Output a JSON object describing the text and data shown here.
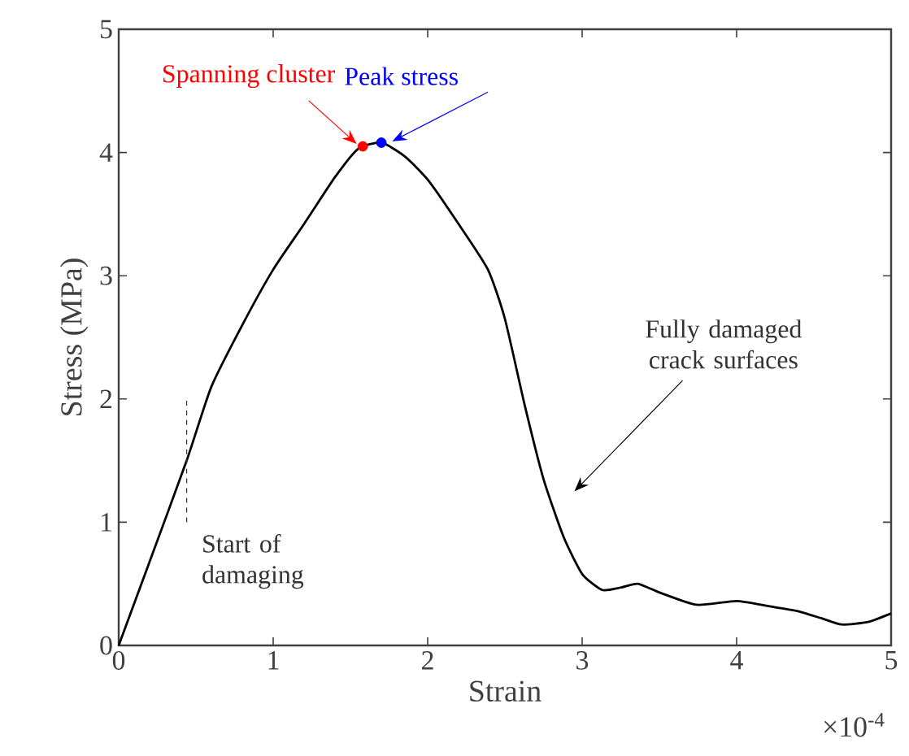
{
  "chart_data": {
    "type": "line",
    "xlabel": "Strain",
    "ylabel": "Stress (MPa)",
    "xlim": [
      0,
      5
    ],
    "ylim": [
      0,
      5
    ],
    "xticks": [
      0,
      1,
      2,
      3,
      4,
      5
    ],
    "yticks": [
      0,
      1,
      2,
      3,
      4,
      5
    ],
    "grid": false,
    "line_style": "solid",
    "series": [
      {
        "color": "#000000",
        "x": [
          0,
          0.2,
          0.44,
          0.6,
          0.8,
          1.0,
          1.2,
          1.4,
          1.55,
          1.7,
          1.85,
          2.0,
          2.2,
          2.39,
          2.5,
          2.63,
          2.75,
          2.88,
          3.0,
          3.13,
          3.25,
          3.36,
          3.5,
          3.74,
          4.0,
          4.2,
          4.39,
          4.55,
          4.68,
          4.85,
          5.0
        ],
        "values": [
          0,
          0.68,
          1.5,
          2.1,
          2.6,
          3.05,
          3.42,
          3.8,
          4.03,
          4.08,
          3.97,
          3.78,
          3.42,
          3.05,
          2.65,
          1.94,
          1.35,
          0.88,
          0.58,
          0.45,
          0.47,
          0.5,
          0.43,
          0.33,
          0.36,
          0.32,
          0.28,
          0.22,
          0.17,
          0.19,
          0.26
        ]
      },
      {
        "type": "scatter",
        "name": "Spanning cluster",
        "color": "#ff0000",
        "x": [
          1.58
        ],
        "values": [
          4.05
        ]
      },
      {
        "type": "scatter",
        "name": "Peak stress",
        "color": "#0000ff",
        "x": [
          1.7
        ],
        "values": [
          4.08
        ]
      }
    ],
    "annotations": [
      {
        "text": "Start of damaging",
        "x": 0.44,
        "y": 1.5
      },
      "Fully damaged crack surfaces",
      "×10$^{-4}$"
    ]
  }
}
